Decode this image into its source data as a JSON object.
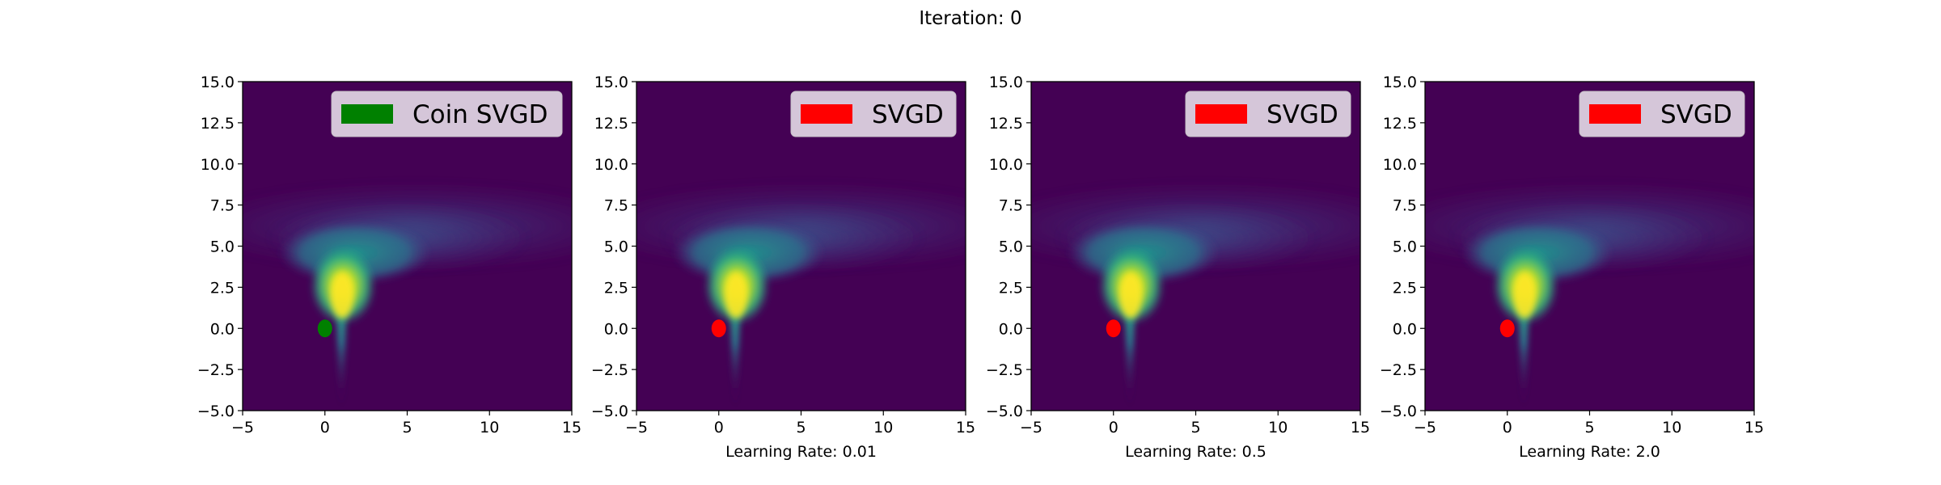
{
  "figure": {
    "title": "Iteration: 0"
  },
  "colors": {
    "background_field": "#440154",
    "coin_svgd": "#008000",
    "svgd": "#ff0000",
    "legend_bg": "#ddd1e1"
  },
  "chart_data": [
    {
      "type": "contour",
      "title": "",
      "xlabel": "",
      "ylabel": "",
      "xlim": [
        -5,
        15
      ],
      "ylim": [
        -5,
        15
      ],
      "xticks": [
        "−5",
        "0",
        "5",
        "10",
        "15"
      ],
      "yticks": [
        "−5.0",
        "−2.5",
        "0.0",
        "2.5",
        "5.0",
        "7.5",
        "10.0",
        "12.5",
        "15.0"
      ],
      "legend": {
        "label": "Coin SVGD",
        "color": "#008000",
        "position": "upper-right"
      },
      "particles": {
        "x": 0,
        "y": 0,
        "color": "#008000"
      }
    },
    {
      "type": "contour",
      "title": "",
      "xlabel": "Learning Rate: 0.01",
      "ylabel": "",
      "xlim": [
        -5,
        15
      ],
      "ylim": [
        -5,
        15
      ],
      "xticks": [
        "−5",
        "0",
        "5",
        "10",
        "15"
      ],
      "yticks": [
        "−5.0",
        "−2.5",
        "0.0",
        "2.5",
        "5.0",
        "7.5",
        "10.0",
        "12.5",
        "15.0"
      ],
      "legend": {
        "label": "SVGD",
        "color": "#ff0000",
        "position": "upper-right"
      },
      "particles": {
        "x": 0,
        "y": 0,
        "color": "#ff0000"
      }
    },
    {
      "type": "contour",
      "title": "",
      "xlabel": "Learning Rate: 0.5",
      "ylabel": "",
      "xlim": [
        -5,
        15
      ],
      "ylim": [
        -5,
        15
      ],
      "xticks": [
        "−5",
        "0",
        "5",
        "10",
        "15"
      ],
      "yticks": [
        "−5.0",
        "−2.5",
        "0.0",
        "2.5",
        "5.0",
        "7.5",
        "10.0",
        "12.5",
        "15.0"
      ],
      "legend": {
        "label": "SVGD",
        "color": "#ff0000",
        "position": "upper-right"
      },
      "particles": {
        "x": 0,
        "y": 0,
        "color": "#ff0000"
      }
    },
    {
      "type": "contour",
      "title": "",
      "xlabel": "Learning Rate: 2.0",
      "ylabel": "",
      "xlim": [
        -5,
        15
      ],
      "ylim": [
        -5,
        15
      ],
      "xticks": [
        "−5",
        "0",
        "5",
        "10",
        "15"
      ],
      "yticks": [
        "−5.0",
        "−2.5",
        "0.0",
        "2.5",
        "5.0",
        "7.5",
        "10.0",
        "12.5",
        "15.0"
      ],
      "legend": {
        "label": "SVGD",
        "color": "#ff0000",
        "position": "upper-right"
      },
      "particles": {
        "x": 0,
        "y": 0,
        "color": "#ff0000"
      }
    }
  ]
}
